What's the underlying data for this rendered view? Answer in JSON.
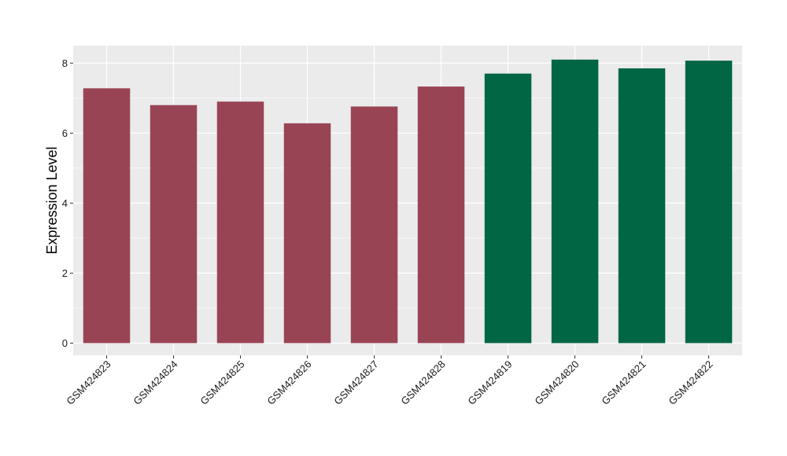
{
  "chart_data": {
    "type": "bar",
    "title": "",
    "xlabel": "",
    "ylabel": "Expression Level",
    "categories": [
      "GSM424823",
      "GSM424824",
      "GSM424825",
      "GSM424826",
      "GSM424827",
      "GSM424828",
      "GSM424819",
      "GSM424820",
      "GSM424821",
      "GSM424822"
    ],
    "values": [
      7.28,
      6.8,
      6.9,
      6.28,
      6.76,
      7.33,
      7.7,
      8.1,
      7.85,
      8.07
    ],
    "bar_colors": [
      "#994455",
      "#994455",
      "#994455",
      "#994455",
      "#994455",
      "#994455",
      "#006644",
      "#006644",
      "#006644",
      "#006644"
    ],
    "ylim": [
      -0.35,
      8.5
    ],
    "yticks": [
      0,
      2,
      4,
      6,
      8
    ],
    "grid": true,
    "panel_background": "#ebebeb",
    "grid_color": "#ffffff"
  }
}
